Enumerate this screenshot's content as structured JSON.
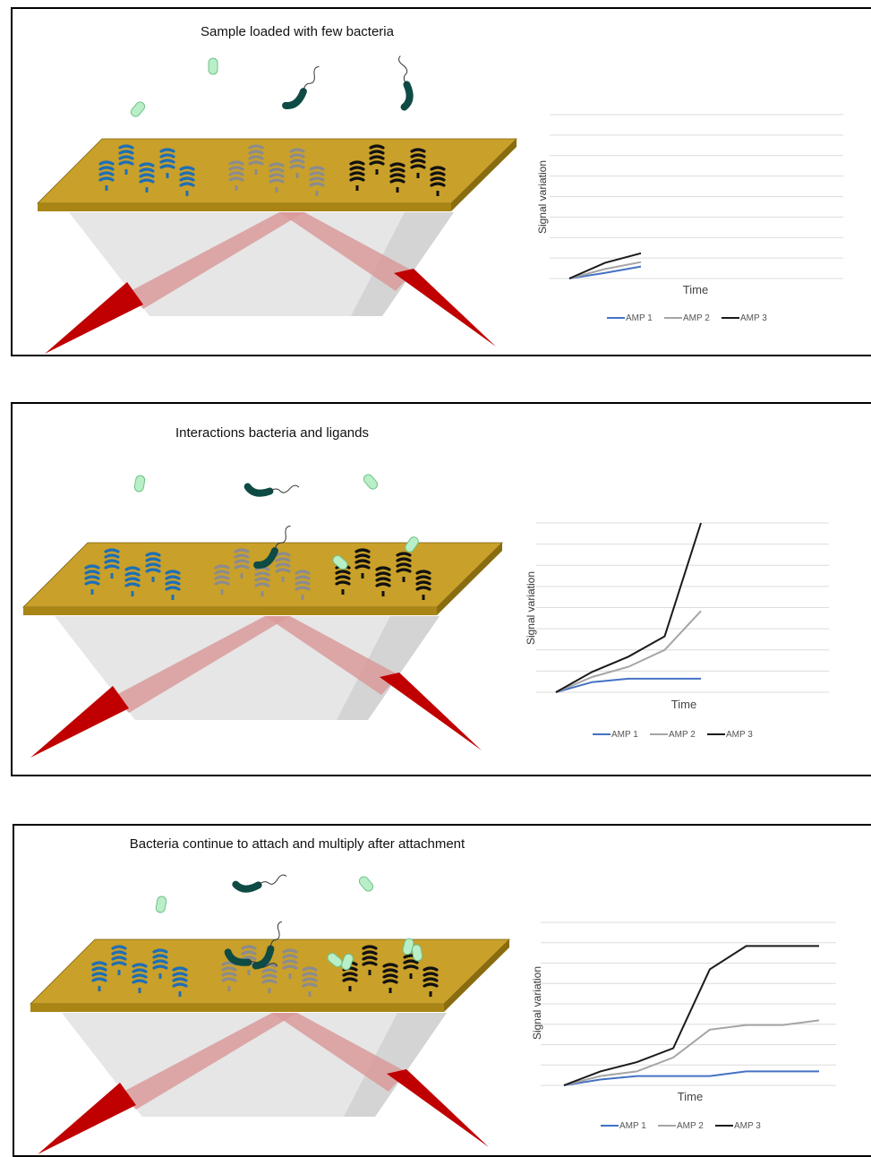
{
  "colors": {
    "plate_top": "#c9a02a",
    "plate_edge": "#a88515",
    "prism": "#e6e6e6",
    "beam": "#d99a9a",
    "laser": "#c00000",
    "ligand_blue": "#1f6fb5",
    "ligand_gray": "#8c8c8c",
    "ligand_black": "#111111",
    "bacteria_dark": "#0e4b45",
    "bacteria_light": "#b9efc6",
    "amp1": "#4472c4",
    "amp2": "#a5a5a5",
    "amp3": "#1a1a1a"
  },
  "panels": [
    {
      "title": "Sample loaded with few bacteria",
      "chart_data": {
        "type": "line",
        "x": [
          0,
          1,
          2
        ],
        "xlabel": "Time",
        "ylabel": "Signal variation",
        "grid": true,
        "legend_position": "bottom",
        "series": [
          {
            "name": "AMP 1",
            "values": [
              0,
              0.45,
              0.95
            ]
          },
          {
            "name": "AMP 2",
            "values": [
              0,
              0.75,
              1.3
            ]
          },
          {
            "name": "AMP 3",
            "values": [
              0,
              1.25,
              2.0
            ]
          }
        ]
      }
    },
    {
      "title": "Interactions bacteria and ligands",
      "chart_data": {
        "type": "line",
        "x": [
          0,
          1,
          2,
          3,
          4
        ],
        "xlabel": "Time",
        "ylabel": "Signal variation",
        "grid": true,
        "legend_position": "bottom",
        "series": [
          {
            "name": "AMP 1",
            "values": [
              0,
              0.3,
              0.4,
              0.4,
              0.4
            ]
          },
          {
            "name": "AMP 2",
            "values": [
              0,
              0.45,
              0.75,
              1.25,
              2.4
            ]
          },
          {
            "name": "AMP 3",
            "values": [
              0,
              0.6,
              1.05,
              1.65,
              5.0
            ]
          }
        ]
      }
    },
    {
      "title": "Bacteria continue to attach and multiply after attachment",
      "chart_data": {
        "type": "line",
        "x": [
          0,
          1,
          2,
          3,
          4,
          5,
          6,
          7
        ],
        "xlabel": "Time",
        "ylabel": "Signal variation",
        "grid": true,
        "legend_position": "bottom",
        "series": [
          {
            "name": "AMP 1",
            "values": [
              0,
              0.25,
              0.4,
              0.4,
              0.4,
              0.6,
              0.6,
              0.6
            ]
          },
          {
            "name": "AMP 2",
            "values": [
              0,
              0.4,
              0.6,
              1.2,
              2.4,
              2.6,
              2.6,
              2.8
            ]
          },
          {
            "name": "AMP 3",
            "values": [
              0,
              0.6,
              1.0,
              1.6,
              5.0,
              6.0,
              6.0,
              6.0
            ]
          }
        ]
      }
    }
  ]
}
